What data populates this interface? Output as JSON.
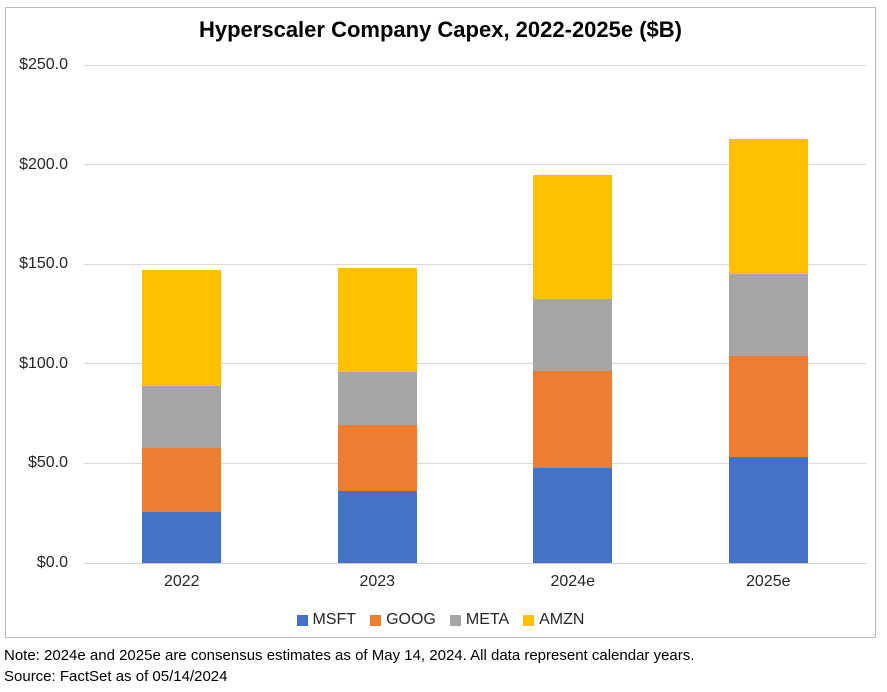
{
  "title": "Hyperscaler Company Capex, 2022-2025e ($B)",
  "note": "Note: 2024e and 2025e are consensus estimates as of May 14, 2024. All data represent calendar years.",
  "source": "Source: FactSet as of 05/14/2024",
  "colors": {
    "msft_blue": "#4472C4",
    "goog_orange": "#ED7D31",
    "meta_gray": "#A5A5A5",
    "amzn_yellow": "#FFC000",
    "gridline": "#D9D9D9",
    "frame_border": "#BDBDBD",
    "axis_text": "#262626"
  },
  "chart_data": {
    "type": "bar",
    "stacked": true,
    "title": "Hyperscaler Company Capex, 2022-2025e ($B)",
    "categories": [
      "2022",
      "2023",
      "2024e",
      "2025e"
    ],
    "series": [
      {
        "name": "MSFT",
        "color": "#4472C4",
        "values": [
          25.5,
          36.4,
          47.8,
          53.0
        ]
      },
      {
        "name": "GOOG",
        "color": "#ED7D31",
        "values": [
          32.3,
          32.7,
          48.4,
          50.8
        ]
      },
      {
        "name": "META",
        "color": "#A5A5A5",
        "values": [
          30.9,
          26.6,
          36.2,
          41.2
        ]
      },
      {
        "name": "AMZN",
        "color": "#FFC000",
        "values": [
          58.3,
          52.3,
          62.4,
          67.8
        ]
      }
    ],
    "totals": [
      147.0,
      148.0,
      194.8,
      212.8
    ],
    "xlabel": "",
    "ylabel": "",
    "ylim": [
      0,
      250
    ],
    "ytick_step": 50,
    "ytick_labels": [
      "$0.0",
      "$50.0",
      "$100.0",
      "$150.0",
      "$200.0",
      "$250.0"
    ],
    "grid": true,
    "legend_position": "bottom"
  }
}
